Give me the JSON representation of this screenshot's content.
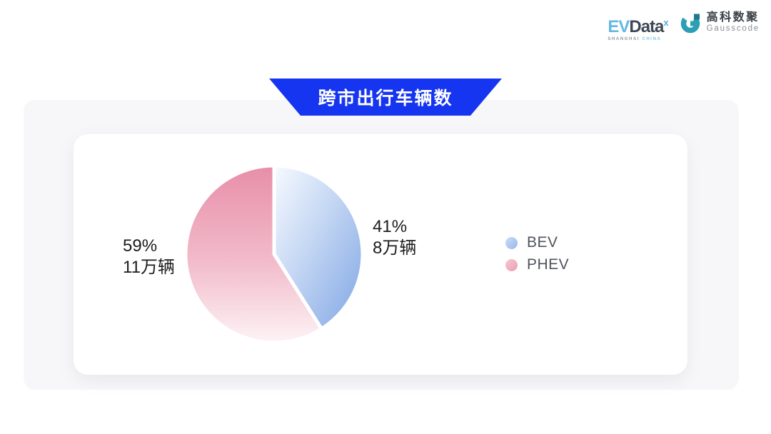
{
  "header": {
    "evdata_logo": {
      "ev": "EV",
      "data": "Data",
      "sup": "x",
      "sub_left": "SHANGHAI",
      "sub_right": "CHINA"
    },
    "gausscode_logo": {
      "cn": "高科数聚",
      "en": "Gausscode"
    }
  },
  "banner": {
    "title": "跨市出行车辆数",
    "color": "#1535f0"
  },
  "chart_data": {
    "type": "pie",
    "title": "跨市出行车辆数",
    "labels": [
      "BEV",
      "PHEV"
    ],
    "values_percent": [
      41,
      59
    ],
    "values_count_label": [
      "8万辆",
      "11万辆"
    ],
    "unit": "万辆",
    "start_angle_deg": 0,
    "direction": "clockwise",
    "legend_position": "right",
    "slice_labels": [
      {
        "percent": "41%",
        "count": "8万辆"
      },
      {
        "percent": "59%",
        "count": "11万辆"
      }
    ],
    "colors": {
      "BEV_gradient": [
        "#f7faff",
        "#7fa5e4"
      ],
      "PHEV_gradient": [
        "#e78ea8",
        "#fdf3f6"
      ],
      "slice_gap_stroke": "#ffffff"
    }
  }
}
